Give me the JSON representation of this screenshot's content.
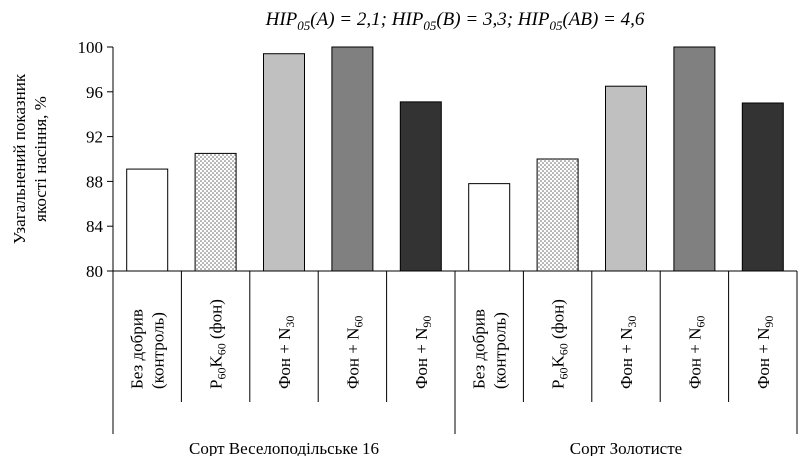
{
  "chart_data": {
    "type": "bar",
    "title_parts": [
      {
        "text": "HIP",
        "sub": "05",
        "rest": "(A) = 2,1; "
      },
      {
        "text": "HIP",
        "sub": "05",
        "rest": "(B) = 3,3; "
      },
      {
        "text": "HIP",
        "sub": "05",
        "rest": "(AB) = 4,6"
      }
    ],
    "ylabel_lines": [
      "Узагальнений показник",
      "якості насіння, %"
    ],
    "ylim": [
      80,
      100
    ],
    "yticks": [
      80,
      84,
      88,
      92,
      96,
      100
    ],
    "groups": [
      {
        "name": "Сорт Веселоподільське 16",
        "categories": [
          {
            "lines": [
              [
                {
                  "t": "Без добрив"
                }
              ],
              [
                {
                  "t": "(контроль)"
                }
              ]
            ],
            "value": 89.1,
            "fill": "#ffffff",
            "pattern": false
          },
          {
            "lines": [
              [
                {
                  "t": "P"
                },
                {
                  "t": "60",
                  "sub": true
                },
                {
                  "t": "K"
                },
                {
                  "t": "60",
                  "sub": true
                },
                {
                  "t": " (фон)"
                }
              ]
            ],
            "value": 90.5,
            "fill": "dots",
            "pattern": true
          },
          {
            "lines": [
              [
                {
                  "t": "Фон + N"
                },
                {
                  "t": "30",
                  "sub": true
                }
              ]
            ],
            "value": 99.4,
            "fill": "#c0c0c0",
            "pattern": false
          },
          {
            "lines": [
              [
                {
                  "t": "Фон + N"
                },
                {
                  "t": "60",
                  "sub": true
                }
              ]
            ],
            "value": 100.0,
            "fill": "#808080",
            "pattern": false
          },
          {
            "lines": [
              [
                {
                  "t": "Фон + N"
                },
                {
                  "t": "90",
                  "sub": true
                }
              ]
            ],
            "value": 95.1,
            "fill": "#333333",
            "pattern": false
          }
        ]
      },
      {
        "name": "Сорт Золотисте",
        "categories": [
          {
            "lines": [
              [
                {
                  "t": "Без добрив"
                }
              ],
              [
                {
                  "t": "(контроль)"
                }
              ]
            ],
            "value": 87.8,
            "fill": "#ffffff",
            "pattern": false
          },
          {
            "lines": [
              [
                {
                  "t": "P"
                },
                {
                  "t": "60",
                  "sub": true
                },
                {
                  "t": "K"
                },
                {
                  "t": "60",
                  "sub": true
                },
                {
                  "t": " (фон)"
                }
              ]
            ],
            "value": 90.0,
            "fill": "dots",
            "pattern": true
          },
          {
            "lines": [
              [
                {
                  "t": "Фон + N"
                },
                {
                  "t": "30",
                  "sub": true
                }
              ]
            ],
            "value": 96.5,
            "fill": "#c0c0c0",
            "pattern": false
          },
          {
            "lines": [
              [
                {
                  "t": "Фон + N"
                },
                {
                  "t": "60",
                  "sub": true
                }
              ]
            ],
            "value": 100.0,
            "fill": "#808080",
            "pattern": false
          },
          {
            "lines": [
              [
                {
                  "t": "Фон + N"
                },
                {
                  "t": "90",
                  "sub": true
                }
              ]
            ],
            "value": 95.0,
            "fill": "#333333",
            "pattern": false
          }
        ]
      }
    ],
    "grid": false,
    "legend": "none"
  }
}
